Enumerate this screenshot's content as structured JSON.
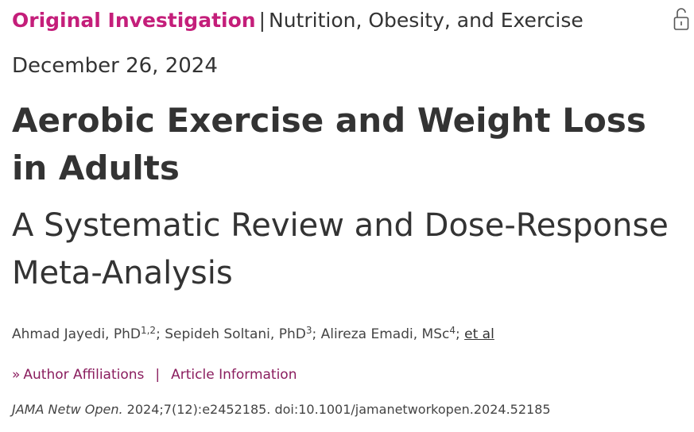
{
  "header": {
    "article_type": "Original Investigation",
    "separator": "|",
    "topic": "Nutrition, Obesity, and Exercise",
    "access_icon": "unlocked-padlock-icon"
  },
  "date": "December 26, 2024",
  "title": "Aerobic Exercise and Weight Loss in Adults",
  "subtitle": "A Systematic Review and Dose-Response Meta-Analysis",
  "authors": [
    {
      "name": "Ahmad Jayedi, PhD",
      "affil": "1,2"
    },
    {
      "name": "Sepideh Soltani, PhD",
      "affil": "3"
    },
    {
      "name": "Alireza Emadi, MSc",
      "affil": "4"
    }
  ],
  "author_separator": ";",
  "et_al": "et al",
  "links": {
    "chevron_icon": "double-chevron-right-icon",
    "author_affiliations": "Author Affiliations",
    "separator": "|",
    "article_information": "Article Information"
  },
  "citation": {
    "journal": "JAMA Netw Open.",
    "details": "2024;7(12):e2452185. doi:10.1001/jamanetworkopen.2024.52185"
  },
  "colors": {
    "accent": "#c41e7a",
    "link": "#8a1d5e",
    "text": "#333333"
  }
}
